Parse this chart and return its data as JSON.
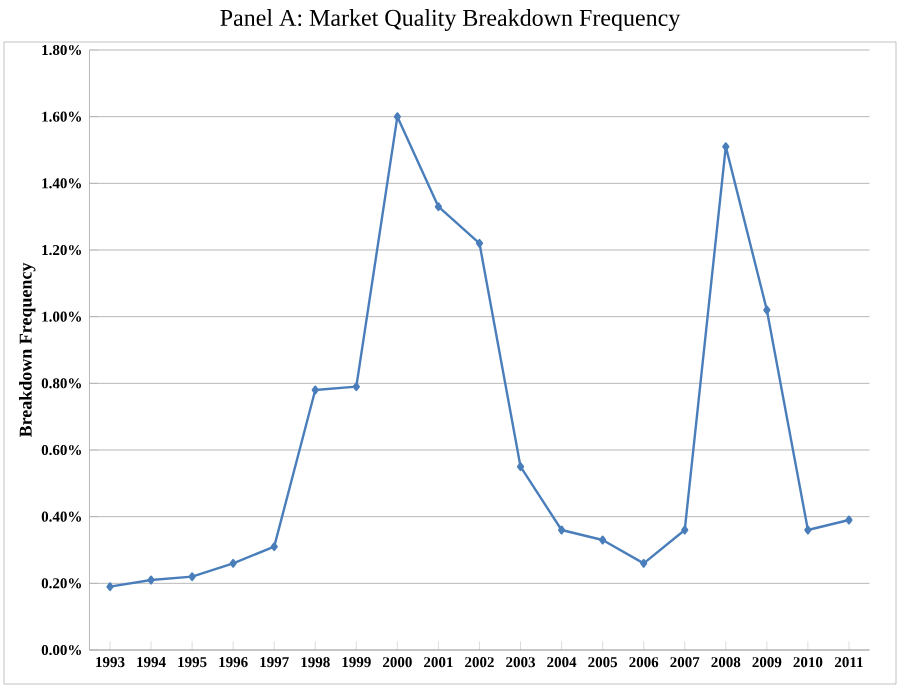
{
  "chart_data": {
    "type": "line",
    "title": "Panel A: Market Quality Breakdown Frequency",
    "ylabel": "Breakdown Frequency",
    "categories": [
      "1993",
      "1994",
      "1995",
      "1996",
      "1997",
      "1998",
      "1999",
      "2000",
      "2001",
      "2002",
      "2003",
      "2004",
      "2005",
      "2006",
      "2007",
      "2008",
      "2009",
      "2010",
      "2011"
    ],
    "series": [
      {
        "color": "#4a7ebb",
        "values": [
          0.19,
          0.21,
          0.22,
          0.26,
          0.31,
          0.78,
          0.79,
          1.6,
          1.33,
          1.22,
          0.55,
          0.36,
          0.33,
          0.26,
          0.36,
          1.51,
          1.02,
          0.36,
          0.39
        ]
      }
    ],
    "ylim": [
      0,
      1.8
    ],
    "yticks": [
      {
        "value": 0,
        "label": "0.00%"
      },
      {
        "value": 0.2,
        "label": "0.20%"
      },
      {
        "value": 0.4,
        "label": "0.40%"
      },
      {
        "value": 0.6,
        "label": "0.60%"
      },
      {
        "value": 0.8,
        "label": "0.80%"
      },
      {
        "value": 1.0,
        "label": "1.00%"
      },
      {
        "value": 1.2,
        "label": "1.20%"
      },
      {
        "value": 1.4,
        "label": "1.40%"
      },
      {
        "value": 1.6,
        "label": "1.60%"
      },
      {
        "value": 1.8,
        "label": "1.80%"
      }
    ],
    "grid": "y",
    "marker": "diamond",
    "line_style": "solid"
  }
}
